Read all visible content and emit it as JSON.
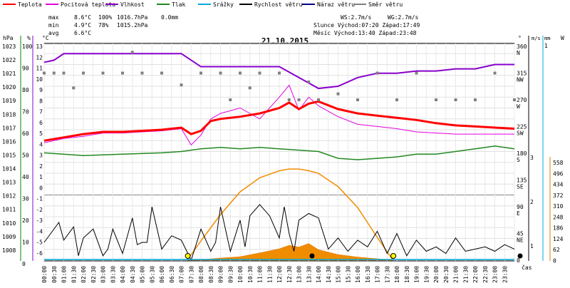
{
  "chart_data": {
    "type": "line",
    "title": "21.10.2015",
    "legend": [
      {
        "name": "Teplota",
        "color": "#ff0000"
      },
      {
        "name": "Pocitová teplota",
        "color": "#e000e0"
      },
      {
        "name": "Vlhkost",
        "color": "#8800cc"
      },
      {
        "name": "Tlak",
        "color": "#228822"
      },
      {
        "name": "Srážky",
        "color": "#00aadd"
      },
      {
        "name": "Rychlost větru",
        "color": "#000000"
      },
      {
        "name": "Náraz větru",
        "color": "#000088"
      },
      {
        "name": "Směr větru",
        "color": "#808080"
      }
    ],
    "stats": {
      "max_label": "max",
      "min_label": "min",
      "avg_label": "avg",
      "max": {
        "temp": "8.6°C",
        "hum": "100%",
        "press": "1016.7hPa",
        "rain": "0.0mm"
      },
      "min": {
        "temp": "4.9°C",
        "hum": "78%",
        "press": "1015.2hPa"
      },
      "avg": {
        "temp": "6.6°C"
      },
      "ws": "WS:2.7m/s",
      "wg": "WG:2.7m/s",
      "sun": "Slunce Východ:07:20  Západ:17:49",
      "moon": "Měsíc  Východ:13:40  Západ:23:48"
    },
    "x_ticks": [
      "00:00",
      "00:30",
      "01:00",
      "01:30",
      "02:00",
      "02:30",
      "03:00",
      "03:30",
      "04:00",
      "04:30",
      "05:00",
      "05:30",
      "06:00",
      "06:30",
      "07:00",
      "07:30",
      "08:00",
      "08:30",
      "09:00",
      "09:30",
      "10:00",
      "10:30",
      "11:00",
      "11:30",
      "12:00",
      "12:30",
      "13:00",
      "13:30",
      "14:00",
      "14:30",
      "15:00",
      "15:30",
      "16:00",
      "16:30",
      "17:00",
      "17:30",
      "18:00",
      "18:30",
      "19:00",
      "19:30",
      "20:00",
      "20:30",
      "21:00",
      "21:30",
      "22:00",
      "22:30",
      "23:00",
      "23:30"
    ],
    "x_unit": "čas",
    "axes": {
      "hpa": {
        "unit": "hPa",
        "ticks": [
          "1023",
          "1022",
          "1021",
          "1020",
          "1019",
          "1018",
          "1017",
          "1016",
          "1015",
          "1014",
          "1013",
          "1012",
          "1011",
          "1010",
          "1009",
          "1008"
        ]
      },
      "pct": {
        "unit": "%",
        "ticks": [
          "100",
          "90",
          "80",
          "70",
          "60",
          "50",
          "40",
          "30",
          "20",
          "10",
          "0"
        ]
      },
      "temp": {
        "unit": "°C",
        "ticks": [
          "13",
          "12",
          "11",
          "10",
          "9",
          "8",
          "7",
          "6",
          "5",
          "4",
          "3",
          "2",
          "1",
          "0",
          "-1",
          "-2",
          "-3",
          "-4",
          "-5",
          "-6"
        ]
      },
      "dir": {
        "unit": "°",
        "ticks": [
          [
            "360",
            "N"
          ],
          [
            "315",
            "NW"
          ],
          [
            "270",
            "W"
          ],
          [
            "225",
            "SW"
          ],
          [
            "180",
            "S"
          ],
          [
            "135",
            "SE"
          ],
          [
            "90",
            "E"
          ],
          [
            "45",
            "NE"
          ],
          [
            "0",
            ""
          ]
        ]
      },
      "ms": {
        "unit": "m/s",
        "ticks": [
          "3",
          "2",
          "1"
        ]
      },
      "mm": {
        "unit": "mm",
        "ticks": [
          "1"
        ]
      },
      "wm2": {
        "unit": "W",
        "ticks": [
          "558",
          "496",
          "434",
          "372",
          "310",
          "248",
          "186",
          "124",
          "62",
          "0"
        ]
      }
    },
    "series": [
      {
        "name": "Teplota",
        "unit": "°C",
        "hours": [
          0,
          1,
          2,
          3,
          4,
          5,
          6,
          7,
          7.5,
          8,
          8.5,
          9,
          10,
          11,
          12,
          12.5,
          13,
          13.5,
          14,
          15,
          16,
          17,
          18,
          19,
          20,
          21,
          22,
          23,
          24
        ],
        "values": [
          5.0,
          5.3,
          5.6,
          5.8,
          5.8,
          5.9,
          6.0,
          6.2,
          5.6,
          5.9,
          6.8,
          7.0,
          7.2,
          7.5,
          8.0,
          8.5,
          7.9,
          8.4,
          8.6,
          7.9,
          7.5,
          7.3,
          7.1,
          6.9,
          6.6,
          6.4,
          6.3,
          6.2,
          6.1
        ]
      },
      {
        "name": "Pocitová teplota",
        "unit": "°C",
        "hours": [
          0,
          1,
          2,
          3,
          4,
          5,
          6,
          7,
          7.5,
          8,
          8.5,
          9,
          10,
          11,
          12,
          12.5,
          13,
          13.5,
          14,
          15,
          16,
          17,
          18,
          19,
          20,
          21,
          22,
          23,
          24
        ],
        "values": [
          4.8,
          5.2,
          5.4,
          5.7,
          5.7,
          5.8,
          5.9,
          6.1,
          4.6,
          5.5,
          7.0,
          7.5,
          8.0,
          7.0,
          9.0,
          10.1,
          7.8,
          9.0,
          8.2,
          7.2,
          6.5,
          6.3,
          6.1,
          5.8,
          5.7,
          5.6,
          5.6,
          5.6,
          5.6
        ]
      },
      {
        "name": "Vlhkost",
        "unit": "%",
        "hours": [
          0,
          0.5,
          1,
          2,
          3,
          4,
          5,
          6,
          7,
          8,
          9,
          10,
          11,
          12,
          13,
          14,
          15,
          16,
          17,
          18,
          19,
          20,
          21,
          22,
          23,
          24
        ],
        "values": [
          91,
          92,
          95,
          95,
          95,
          95,
          95,
          95,
          95,
          89,
          89,
          89,
          89,
          89,
          84,
          79,
          80,
          84,
          86,
          86,
          87,
          87,
          88,
          88,
          90,
          90
        ]
      },
      {
        "name": "Tlak",
        "unit": "hPa",
        "hours": [
          0,
          2,
          4,
          6,
          7,
          8,
          9,
          10,
          11,
          12,
          13,
          14,
          15,
          16,
          17,
          18,
          19,
          20,
          21,
          22,
          23,
          24
        ],
        "values": [
          1015.9,
          1015.7,
          1015.8,
          1015.9,
          1016.0,
          1016.2,
          1016.3,
          1016.2,
          1016.3,
          1016.2,
          1016.1,
          1016.0,
          1015.5,
          1015.4,
          1015.5,
          1015.6,
          1015.8,
          1015.8,
          1016.0,
          1016.2,
          1016.4,
          1016.2
        ]
      },
      {
        "name": "Rychlost větru",
        "unit": "m/s",
        "hours": [
          0,
          0.75,
          1,
          1.5,
          1.75,
          2,
          2.5,
          3,
          3.25,
          3.5,
          4,
          4.5,
          4.75,
          5,
          5.25,
          5.5,
          6,
          6.5,
          7,
          7.5,
          8,
          8.5,
          8.75,
          9,
          9.5,
          10,
          10.25,
          10.5,
          11,
          11.5,
          12,
          12.25,
          12.5,
          12.75,
          13,
          13.5,
          14,
          14.5,
          15,
          15.5,
          16,
          16.5,
          17,
          17.5,
          18,
          18.5,
          19,
          19.5,
          20,
          20.5,
          21,
          21.5,
          22,
          22.5,
          23,
          23.5,
          24
        ],
        "values": [
          0.8,
          1.7,
          0.9,
          1.5,
          0.2,
          1.0,
          1.4,
          0.2,
          0.5,
          1.4,
          0.3,
          1.9,
          0.7,
          0.8,
          0.8,
          2.4,
          0.5,
          1.1,
          0.9,
          0.0,
          1.4,
          0.4,
          0.8,
          2.4,
          0.4,
          1.8,
          0.6,
          2.0,
          2.5,
          2.0,
          1.0,
          2.4,
          1.2,
          0.4,
          1.8,
          2.1,
          1.9,
          0.5,
          1.0,
          0.4,
          0.9,
          0.6,
          1.3,
          0.3,
          1.2,
          0.2,
          0.9,
          0.4,
          0.6,
          0.3,
          1.0,
          0.4,
          0.5,
          0.6,
          0.4,
          0.7,
          0.5
        ]
      },
      {
        "name": "Směr větru",
        "unit": "°",
        "hours": [
          0,
          0.5,
          1,
          1.5,
          2,
          3,
          4,
          4.5,
          5,
          6,
          7,
          8,
          9,
          9.5,
          10,
          10.5,
          11,
          12,
          12.5,
          13,
          13.5,
          14,
          15,
          16,
          17,
          18,
          19,
          20,
          21,
          22,
          23,
          24
        ],
        "values": [
          315,
          315,
          315,
          290,
          315,
          315,
          315,
          350,
          315,
          315,
          295,
          315,
          315,
          270,
          315,
          290,
          315,
          315,
          270,
          270,
          300,
          270,
          280,
          270,
          315,
          270,
          315,
          270,
          270,
          270,
          315,
          270
        ]
      },
      {
        "name": "Srážky",
        "unit": "mm",
        "hours": [
          0,
          24
        ],
        "values": [
          0,
          0
        ]
      },
      {
        "name": "Náraz větru",
        "unit": "m/s",
        "hours": [
          0,
          24
        ],
        "values": [
          2.7,
          2.7
        ]
      },
      {
        "name": "Solar radiation",
        "unit": "W/m²",
        "hours": [
          7.3,
          8,
          9,
          10,
          11,
          12,
          12.5,
          13,
          13.5,
          14,
          15,
          16,
          17,
          17.8
        ],
        "values": [
          0,
          3,
          12,
          20,
          42,
          65,
          85,
          75,
          95,
          60,
          32,
          18,
          8,
          0
        ]
      },
      {
        "name": "Solar max",
        "unit": "W/m²",
        "hours": [
          7.3,
          8,
          9,
          10,
          11,
          12,
          12.5,
          13,
          13.5,
          14,
          15,
          16,
          17,
          17.8
        ],
        "values": [
          0,
          110,
          260,
          390,
          470,
          510,
          520,
          520,
          510,
          495,
          420,
          300,
          130,
          0
        ]
      }
    ],
    "sun_markers": [
      7.33,
      17.82
    ],
    "moon_marker": 13.67
  }
}
